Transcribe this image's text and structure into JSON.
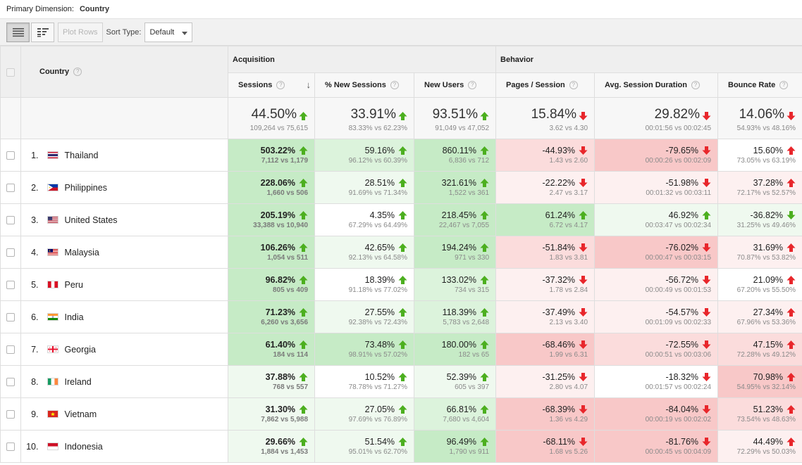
{
  "primary_dimension": {
    "label": "Primary Dimension:",
    "value": "Country"
  },
  "toolbar": {
    "plot_rows": "Plot Rows",
    "sort_type_label": "Sort Type:",
    "sort_type_value": "Default"
  },
  "groups": {
    "acquisition": "Acquisition",
    "behavior": "Behavior"
  },
  "columns": {
    "country": "Country",
    "sessions": "Sessions",
    "pct_new_sessions": "% New Sessions",
    "new_users": "New Users",
    "pages_session": "Pages / Session",
    "avg_session_duration": "Avg. Session Duration",
    "bounce_rate": "Bounce Rate"
  },
  "colors": {
    "up_green": "#4caf1f",
    "down_red": "#e8262b"
  },
  "summary": {
    "sessions": {
      "value": "44.50%",
      "detail": "109,264 vs 75,615",
      "dir": "up-green"
    },
    "pct_new_sessions": {
      "value": "33.91%",
      "detail": "83.33% vs 62.23%",
      "dir": "up-green"
    },
    "new_users": {
      "value": "93.51%",
      "detail": "91,049 vs 47,052",
      "dir": "up-green"
    },
    "pages_session": {
      "value": "15.84%",
      "detail": "3.62 vs 4.30",
      "dir": "down-red"
    },
    "avg_session_duration": {
      "value": "29.82%",
      "detail": "00:01:56 vs 00:02:45",
      "dir": "down-red"
    },
    "bounce_rate": {
      "value": "14.06%",
      "detail": "54.93% vs 48.16%",
      "dir": "down-red"
    }
  },
  "rows": [
    {
      "rank": "1.",
      "country": "Thailand",
      "flag": "thailand-flag",
      "sessions": {
        "value": "503.22%",
        "detail": "7,112 vs 1,179",
        "dir": "up-green",
        "shade": "g3"
      },
      "pct_new_sessions": {
        "value": "59.16%",
        "detail": "96.12% vs 60.39%",
        "dir": "up-green",
        "shade": "g2"
      },
      "new_users": {
        "value": "860.11%",
        "detail": "6,836 vs 712",
        "dir": "up-green",
        "shade": "g3"
      },
      "pages_session": {
        "value": "-44.93%",
        "detail": "1.43 vs 2.60",
        "dir": "down-red",
        "shade": "r2"
      },
      "avg_session_duration": {
        "value": "-79.65%",
        "detail": "00:00:26 vs 00:02:09",
        "dir": "down-red",
        "shade": "r3"
      },
      "bounce_rate": {
        "value": "15.60%",
        "detail": "73.05% vs 63.19%",
        "dir": "up-red",
        "shade": "n0"
      }
    },
    {
      "rank": "2.",
      "country": "Philippines",
      "flag": "philippines-flag",
      "sessions": {
        "value": "228.06%",
        "detail": "1,660 vs 506",
        "dir": "up-green",
        "shade": "g3"
      },
      "pct_new_sessions": {
        "value": "28.51%",
        "detail": "91.69% vs 71.34%",
        "dir": "up-green",
        "shade": "g1"
      },
      "new_users": {
        "value": "321.61%",
        "detail": "1,522 vs 361",
        "dir": "up-green",
        "shade": "g3"
      },
      "pages_session": {
        "value": "-22.22%",
        "detail": "2.47 vs 3.17",
        "dir": "down-red",
        "shade": "r1"
      },
      "avg_session_duration": {
        "value": "-51.98%",
        "detail": "00:01:32 vs 00:03:11",
        "dir": "down-red",
        "shade": "r1"
      },
      "bounce_rate": {
        "value": "37.28%",
        "detail": "72.17% vs 52.57%",
        "dir": "up-red",
        "shade": "r1"
      }
    },
    {
      "rank": "3.",
      "country": "United States",
      "flag": "united-states-flag",
      "sessions": {
        "value": "205.19%",
        "detail": "33,388 vs 10,940",
        "dir": "up-green",
        "shade": "g3"
      },
      "pct_new_sessions": {
        "value": "4.35%",
        "detail": "67.29% vs 64.49%",
        "dir": "up-green",
        "shade": "n0"
      },
      "new_users": {
        "value": "218.45%",
        "detail": "22,467 vs 7,055",
        "dir": "up-green",
        "shade": "g3"
      },
      "pages_session": {
        "value": "61.24%",
        "detail": "6.72 vs 4.17",
        "dir": "up-green",
        "shade": "g3"
      },
      "avg_session_duration": {
        "value": "46.92%",
        "detail": "00:03:47 vs 00:02:34",
        "dir": "up-green",
        "shade": "g1"
      },
      "bounce_rate": {
        "value": "-36.82%",
        "detail": "31.25% vs 49.46%",
        "dir": "down-green",
        "shade": "g1"
      }
    },
    {
      "rank": "4.",
      "country": "Malaysia",
      "flag": "malaysia-flag",
      "sessions": {
        "value": "106.26%",
        "detail": "1,054 vs 511",
        "dir": "up-green",
        "shade": "g3"
      },
      "pct_new_sessions": {
        "value": "42.65%",
        "detail": "92.13% vs 64.58%",
        "dir": "up-green",
        "shade": "g1"
      },
      "new_users": {
        "value": "194.24%",
        "detail": "971 vs 330",
        "dir": "up-green",
        "shade": "g3"
      },
      "pages_session": {
        "value": "-51.84%",
        "detail": "1.83 vs 3.81",
        "dir": "down-red",
        "shade": "r2"
      },
      "avg_session_duration": {
        "value": "-76.02%",
        "detail": "00:00:47 vs 00:03:15",
        "dir": "down-red",
        "shade": "r3"
      },
      "bounce_rate": {
        "value": "31.69%",
        "detail": "70.87% vs 53.82%",
        "dir": "up-red",
        "shade": "r1"
      }
    },
    {
      "rank": "5.",
      "country": "Peru",
      "flag": "peru-flag",
      "sessions": {
        "value": "96.82%",
        "detail": "805 vs 409",
        "dir": "up-green",
        "shade": "g3"
      },
      "pct_new_sessions": {
        "value": "18.39%",
        "detail": "91.18% vs 77.02%",
        "dir": "up-green",
        "shade": "n0"
      },
      "new_users": {
        "value": "133.02%",
        "detail": "734 vs 315",
        "dir": "up-green",
        "shade": "g2"
      },
      "pages_session": {
        "value": "-37.32%",
        "detail": "1.78 vs 2.84",
        "dir": "down-red",
        "shade": "r1"
      },
      "avg_session_duration": {
        "value": "-56.72%",
        "detail": "00:00:49 vs 00:01:53",
        "dir": "down-red",
        "shade": "r1"
      },
      "bounce_rate": {
        "value": "21.09%",
        "detail": "67.20% vs 55.50%",
        "dir": "up-red",
        "shade": "n0"
      }
    },
    {
      "rank": "6.",
      "country": "India",
      "flag": "india-flag",
      "sessions": {
        "value": "71.23%",
        "detail": "6,260 vs 3,656",
        "dir": "up-green",
        "shade": "g3"
      },
      "pct_new_sessions": {
        "value": "27.55%",
        "detail": "92.38% vs 72.43%",
        "dir": "up-green",
        "shade": "g1"
      },
      "new_users": {
        "value": "118.39%",
        "detail": "5,783 vs 2,648",
        "dir": "up-green",
        "shade": "g2"
      },
      "pages_session": {
        "value": "-37.49%",
        "detail": "2.13 vs 3.40",
        "dir": "down-red",
        "shade": "r1"
      },
      "avg_session_duration": {
        "value": "-54.57%",
        "detail": "00:01:09 vs 00:02:33",
        "dir": "down-red",
        "shade": "r1"
      },
      "bounce_rate": {
        "value": "27.34%",
        "detail": "67.96% vs 53.36%",
        "dir": "up-red",
        "shade": "r1"
      }
    },
    {
      "rank": "7.",
      "country": "Georgia",
      "flag": "georgia-flag",
      "sessions": {
        "value": "61.40%",
        "detail": "184 vs 114",
        "dir": "up-green",
        "shade": "g3"
      },
      "pct_new_sessions": {
        "value": "73.48%",
        "detail": "98.91% vs 57.02%",
        "dir": "up-green",
        "shade": "g3"
      },
      "new_users": {
        "value": "180.00%",
        "detail": "182 vs 65",
        "dir": "up-green",
        "shade": "g3"
      },
      "pages_session": {
        "value": "-68.46%",
        "detail": "1.99 vs 6.31",
        "dir": "down-red",
        "shade": "r3"
      },
      "avg_session_duration": {
        "value": "-72.55%",
        "detail": "00:00:51 vs 00:03:06",
        "dir": "down-red",
        "shade": "r2"
      },
      "bounce_rate": {
        "value": "47.15%",
        "detail": "72.28% vs 49.12%",
        "dir": "up-red",
        "shade": "r2"
      }
    },
    {
      "rank": "8.",
      "country": "Ireland",
      "flag": "ireland-flag",
      "sessions": {
        "value": "37.88%",
        "detail": "768 vs 557",
        "dir": "up-green",
        "shade": "g1"
      },
      "pct_new_sessions": {
        "value": "10.52%",
        "detail": "78.78% vs 71.27%",
        "dir": "up-green",
        "shade": "n0"
      },
      "new_users": {
        "value": "52.39%",
        "detail": "605 vs 397",
        "dir": "up-green",
        "shade": "g1"
      },
      "pages_session": {
        "value": "-31.25%",
        "detail": "2.80 vs 4.07",
        "dir": "down-red",
        "shade": "r1"
      },
      "avg_session_duration": {
        "value": "-18.32%",
        "detail": "00:01:57 vs 00:02:24",
        "dir": "down-red",
        "shade": "n0"
      },
      "bounce_rate": {
        "value": "70.98%",
        "detail": "54.95% vs 32.14%",
        "dir": "up-red",
        "shade": "r3"
      }
    },
    {
      "rank": "9.",
      "country": "Vietnam",
      "flag": "vietnam-flag",
      "sessions": {
        "value": "31.30%",
        "detail": "7,862 vs 5,988",
        "dir": "up-green",
        "shade": "g1"
      },
      "pct_new_sessions": {
        "value": "27.05%",
        "detail": "97.69% vs 76.89%",
        "dir": "up-green",
        "shade": "g1"
      },
      "new_users": {
        "value": "66.81%",
        "detail": "7,680 vs 4,604",
        "dir": "up-green",
        "shade": "g2"
      },
      "pages_session": {
        "value": "-68.39%",
        "detail": "1.36 vs 4.29",
        "dir": "down-red",
        "shade": "r3"
      },
      "avg_session_duration": {
        "value": "-84.04%",
        "detail": "00:00:19 vs 00:02:02",
        "dir": "down-red",
        "shade": "r3"
      },
      "bounce_rate": {
        "value": "51.23%",
        "detail": "73.54% vs 48.63%",
        "dir": "up-red",
        "shade": "r2"
      }
    },
    {
      "rank": "10.",
      "country": "Indonesia",
      "flag": "indonesia-flag",
      "sessions": {
        "value": "29.66%",
        "detail": "1,884 vs 1,453",
        "dir": "up-green",
        "shade": "g1"
      },
      "pct_new_sessions": {
        "value": "51.54%",
        "detail": "95.01% vs 62.70%",
        "dir": "up-green",
        "shade": "g1"
      },
      "new_users": {
        "value": "96.49%",
        "detail": "1,790 vs 911",
        "dir": "up-green",
        "shade": "g3"
      },
      "pages_session": {
        "value": "-68.11%",
        "detail": "1.68 vs 5.26",
        "dir": "down-red",
        "shade": "r3"
      },
      "avg_session_duration": {
        "value": "-81.76%",
        "detail": "00:00:45 vs 00:04:09",
        "dir": "down-red",
        "shade": "r3"
      },
      "bounce_rate": {
        "value": "44.49%",
        "detail": "72.29% vs 50.03%",
        "dir": "up-red",
        "shade": "r1"
      }
    }
  ]
}
